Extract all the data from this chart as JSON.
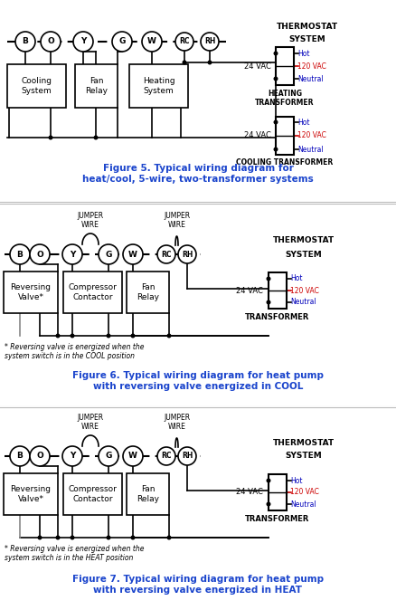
{
  "fig_width": 4.38,
  "fig_height": 6.74,
  "dpi": 100,
  "bg_color": "#ffffff",
  "black": "#000000",
  "blue": "#0000bb",
  "red": "#cc0000",
  "gray": "#888888",
  "title_color": "#1a44cc",
  "panel1": {
    "title": "Figure 5. Typical wiring diagram for\nheat/cool, 5-wire, two-transformer systems",
    "terminals": [
      "B",
      "O",
      "Y",
      "G",
      "W",
      "RC",
      "RH"
    ],
    "boxes": [
      {
        "label": "Cooling\nSystem"
      },
      {
        "label": "Fan\nRelay"
      },
      {
        "label": "Heating\nSystem"
      }
    ],
    "heat_transformer_label": "HEATING\nTRANSFORMER",
    "cool_transformer_label": "COOLING TRANSFORMER",
    "thermostat_label": "THERMOSTAT",
    "system_label": "SYSTEM",
    "vac24_label": "24 VAC",
    "hot_label": "Hot",
    "vac120_label": "120 VAC",
    "neutral_label": "Neutral"
  },
  "panel2": {
    "title": "Figure 6. Typical wiring diagram for heat pump\nwith reversing valve energized in COOL",
    "terminals": [
      "B",
      "O",
      "Y",
      "G",
      "W",
      "RC",
      "RH"
    ],
    "boxes": [
      {
        "label": "Reversing\nValve*"
      },
      {
        "label": "Compressor\nContactor"
      },
      {
        "label": "Fan\nRelay"
      }
    ],
    "jumper1_label": "JUMPER\nWIRE",
    "jumper2_label": "JUMPER\nWIRE",
    "transformer_label": "TRANSFORMER",
    "thermostat_label": "THERMOSTAT",
    "system_label": "SYSTEM",
    "vac24_label": "24 VAC",
    "hot_label": "Hot",
    "vac120_label": "120 VAC",
    "neutral_label": "Neutral",
    "note": "* Reversing valve is energized when the\nsystem switch is in the COOL position"
  },
  "panel3": {
    "title": "Figure 7. Typical wiring diagram for heat pump\nwith reversing valve energized in HEAT",
    "terminals": [
      "B",
      "O",
      "Y",
      "G",
      "W",
      "RC",
      "RH"
    ],
    "boxes": [
      {
        "label": "Reversing\nValve*"
      },
      {
        "label": "Compressor\nContactor"
      },
      {
        "label": "Fan\nRelay"
      }
    ],
    "jumper1_label": "JUMPER\nWIRE",
    "jumper2_label": "JUMPER\nWIRE",
    "transformer_label": "TRANSFORMER",
    "thermostat_label": "THERMOSTAT",
    "system_label": "SYSTEM",
    "vac24_label": "24 VAC",
    "hot_label": "Hot",
    "vac120_label": "120 VAC",
    "neutral_label": "Neutral",
    "note": "* Reversing valve is energized when the\nsystem switch is in the HEAT position"
  }
}
